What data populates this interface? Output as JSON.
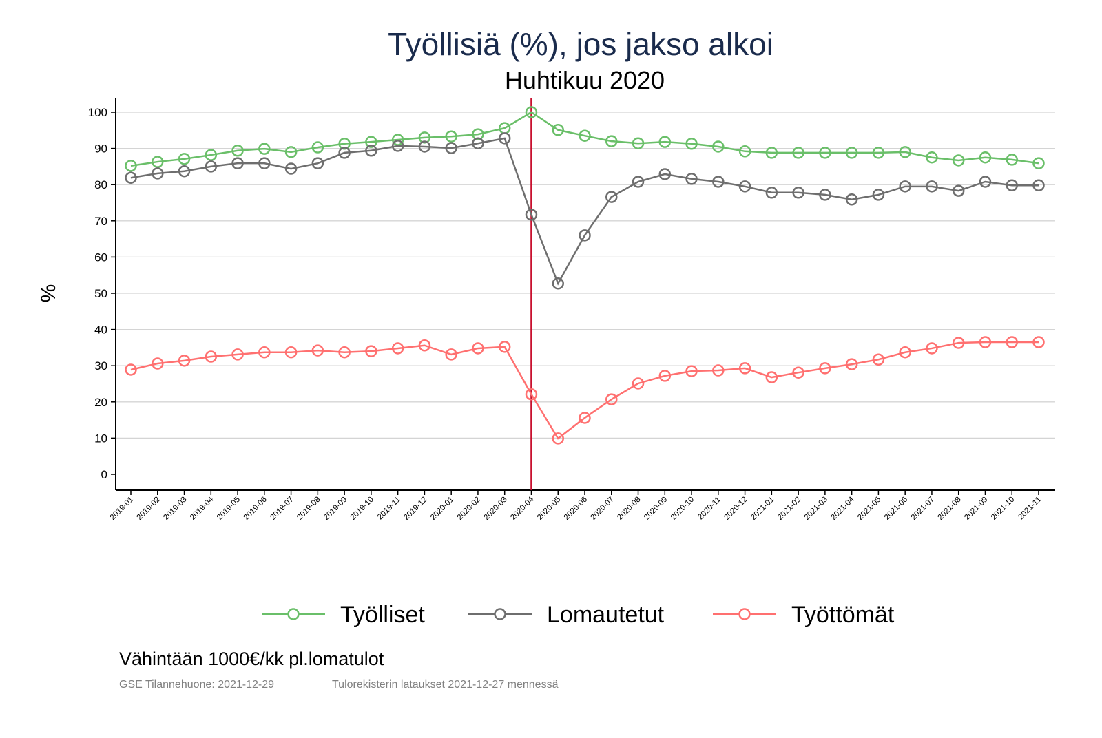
{
  "chart_data": {
    "type": "line",
    "title": "Työllisiä (%), jos jakso alkoi",
    "subtitle": "Huhtikuu 2020",
    "ylabel": "%",
    "xlabel": "",
    "ylim": [
      -4,
      104
    ],
    "yticks": [
      0,
      10,
      20,
      30,
      40,
      50,
      60,
      70,
      80,
      90,
      100
    ],
    "grid": true,
    "legend_position": "bottom",
    "vline_at": "2020-04",
    "categories": [
      "2019-01",
      "2019-02",
      "2019-03",
      "2019-04",
      "2019-05",
      "2019-06",
      "2019-07",
      "2019-08",
      "2019-09",
      "2019-10",
      "2019-11",
      "2019-12",
      "2020-01",
      "2020-02",
      "2020-03",
      "2020-04",
      "2020-05",
      "2020-06",
      "2020-07",
      "2020-08",
      "2020-09",
      "2020-10",
      "2020-11",
      "2020-12",
      "2021-01",
      "2021-02",
      "2021-03",
      "2021-04",
      "2021-05",
      "2021-06",
      "2021-07",
      "2021-08",
      "2021-09",
      "2021-10",
      "2021-11"
    ],
    "series": [
      {
        "name": "Työlliset",
        "color": "#6abf69",
        "values": [
          85.2,
          86.3,
          87.1,
          88.2,
          89.4,
          89.9,
          89.0,
          90.3,
          91.3,
          91.8,
          92.4,
          93.0,
          93.3,
          93.9,
          95.6,
          100,
          95.1,
          93.5,
          92.0,
          91.4,
          91.8,
          91.3,
          90.5,
          89.2,
          88.8,
          88.8,
          88.8,
          88.8,
          88.8,
          89.0,
          87.5,
          86.7,
          87.5,
          86.9,
          85.9
        ]
      },
      {
        "name": "Lomautetut",
        "color": "#6e6e6e",
        "values": [
          81.9,
          83.1,
          83.7,
          85.0,
          85.9,
          85.9,
          84.4,
          85.9,
          88.8,
          89.4,
          90.7,
          90.5,
          90.1,
          91.4,
          92.8,
          71.7,
          52.7,
          66.0,
          76.6,
          80.8,
          82.9,
          81.6,
          80.8,
          79.5,
          77.8,
          77.8,
          77.2,
          75.9,
          77.2,
          79.5,
          79.5,
          78.3,
          80.8,
          79.8,
          79.8
        ]
      },
      {
        "name": "Työttömät",
        "color": "#ff7070",
        "values": [
          28.9,
          30.6,
          31.4,
          32.5,
          33.1,
          33.7,
          33.7,
          34.2,
          33.7,
          34.0,
          34.8,
          35.6,
          33.1,
          34.8,
          35.2,
          22.1,
          9.9,
          15.6,
          20.7,
          25.1,
          27.2,
          28.5,
          28.7,
          29.3,
          26.8,
          28.1,
          29.3,
          30.4,
          31.7,
          33.7,
          34.8,
          36.3,
          36.5,
          36.5,
          36.5
        ]
      }
    ],
    "colors": {
      "title": "#1a2b4c",
      "vline": "#c8102e"
    }
  },
  "notes": {
    "caption": "Vähintään 1000€/kk pl.lomatulot",
    "source": "GSE Tilannehuone: 2021-12-29",
    "update": "Tulorekisterin lataukset 2021-12-27 mennessä"
  }
}
